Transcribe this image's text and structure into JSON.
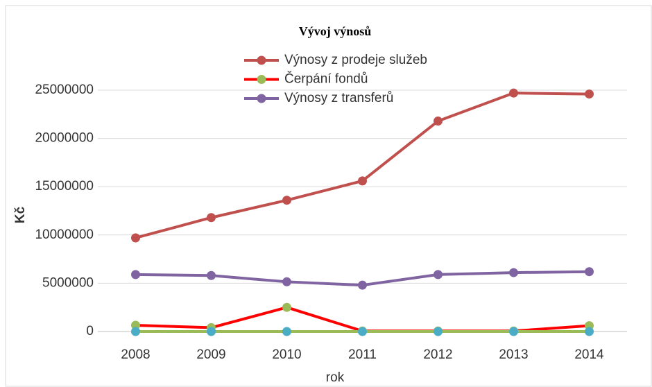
{
  "chart_data": {
    "type": "line",
    "title": "Vývoj výnosů",
    "x_label": "rok",
    "y_label": "Kč",
    "categories": [
      "2008",
      "2009",
      "2010",
      "2011",
      "2012",
      "2013",
      "2014"
    ],
    "series": [
      {
        "name": "Výnosy z prodeje služeb",
        "color": "#c0504d",
        "marker_color": "#c0504d",
        "values": [
          9700000,
          11800000,
          13600000,
          15600000,
          21800000,
          24700000,
          24600000
        ]
      },
      {
        "name": "Čerpání fondů",
        "color": "#ff0000",
        "marker_color": "#9bbb59",
        "values": [
          650000,
          400000,
          2500000,
          50000,
          50000,
          50000,
          600000
        ]
      },
      {
        "name": "Výnosy z transferů",
        "color": "#8064a2",
        "marker_color": "#8064a2",
        "values": [
          5900000,
          5800000,
          5150000,
          4800000,
          5900000,
          6100000,
          6200000
        ]
      },
      {
        "color": "#9bbb59",
        "marker_color": "#4bacc6",
        "values": [
          0,
          0,
          0,
          0,
          0,
          0,
          0
        ]
      }
    ],
    "ylim": [
      0,
      25000000
    ],
    "yticks": [
      0,
      5000000,
      10000000,
      15000000,
      20000000,
      25000000
    ],
    "grid": true,
    "legend": "top"
  }
}
